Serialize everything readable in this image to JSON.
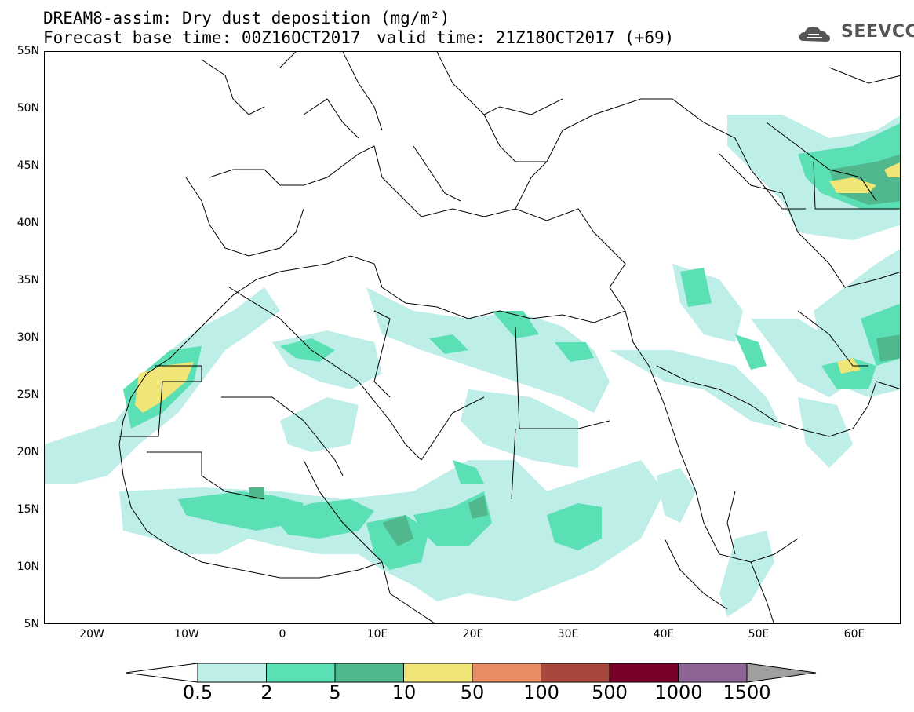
{
  "title": {
    "line1": "DREAM8-assim: Dry dust deposition (mg/m²)",
    "base_time": "Forecast base time: 00Z16OCT2017",
    "valid_time": "valid time: 21Z18OCT2017 (+69)"
  },
  "logo": {
    "text": "SEEVCCC",
    "icon": "cloud-logo-icon"
  },
  "axes": {
    "lat_labels": [
      "55N",
      "50N",
      "45N",
      "40N",
      "35N",
      "30N",
      "25N",
      "20N",
      "15N",
      "10N",
      "5N"
    ],
    "lon_labels": [
      "20W",
      "10W",
      "0",
      "10E",
      "20E",
      "30E",
      "40E",
      "50E",
      "60E"
    ]
  },
  "colorbar": {
    "labels": [
      "0.5",
      "2",
      "5",
      "10",
      "50",
      "100",
      "500",
      "1000",
      "1500"
    ],
    "colors": [
      "#bdeee8",
      "#5ae0b4",
      "#50b88c",
      "#f0e678",
      "#e88c64",
      "#a8483c",
      "#780028",
      "#8c6496"
    ],
    "under_color": "#ffffff",
    "over_color": "#a0a0a0"
  }
}
